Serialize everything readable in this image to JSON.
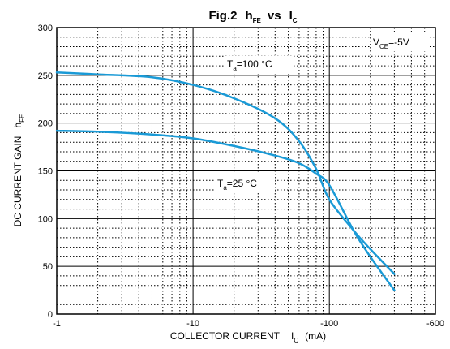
{
  "chart_data": {
    "type": "line",
    "title": {
      "main": "Fig.2",
      "base1": "h",
      "sub1": "FE",
      "vs": "vs",
      "base2": "I",
      "sub2": "C"
    },
    "xlabel": {
      "text": "COLLECTOR CURRENT",
      "base": "I",
      "sub": "C",
      "unit": "(mA)"
    },
    "ylabel": {
      "text": "DC CURRENT GAIN",
      "base": "h",
      "sub": "FE"
    },
    "x_scale": "log",
    "x_direction": "negative",
    "xlim": [
      -1,
      -600
    ],
    "ylim": [
      0,
      300
    ],
    "x_ticks": [
      -1,
      -10,
      -100,
      -600
    ],
    "x_tick_labels": [
      "-1",
      "-10",
      "-100",
      "-600"
    ],
    "y_ticks": [
      0,
      50,
      100,
      150,
      200,
      250,
      300
    ],
    "y_tick_labels": [
      "0",
      "50",
      "100",
      "150",
      "200",
      "250",
      "300"
    ],
    "grid": true,
    "line_color": "#1a9ad6",
    "annotations": {
      "vce": {
        "base": "V",
        "sub": "CE",
        "rest": "=-5V"
      },
      "t100": {
        "base": "T",
        "sub": "a",
        "rest": "=100 °C"
      },
      "t25": {
        "base": "T",
        "sub": "a",
        "rest": "=25 °C"
      }
    },
    "series": [
      {
        "label_ref": "t100",
        "x": [
          -1,
          -2,
          -5,
          -10,
          -20,
          -40,
          -60,
          -80,
          -100,
          -150,
          -200,
          -300
        ],
        "y": [
          253,
          251,
          248,
          240,
          226,
          205,
          181,
          152,
          120,
          88,
          68,
          42
        ]
      },
      {
        "label_ref": "t25",
        "x": [
          -1,
          -2,
          -5,
          -10,
          -20,
          -40,
          -60,
          -80,
          -100,
          -150,
          -200,
          -300
        ],
        "y": [
          192,
          191,
          188,
          184,
          176,
          166,
          158,
          147,
          135,
          88,
          60,
          25
        ]
      }
    ]
  }
}
